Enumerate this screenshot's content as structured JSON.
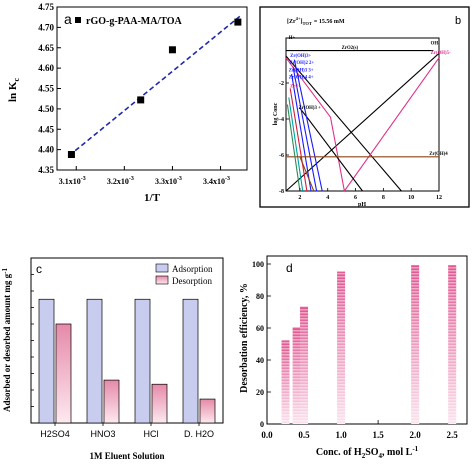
{
  "colors": {
    "axis": "#000000",
    "panelA_fit": "#1f2aa8",
    "adsorption": "#c8cdf0",
    "desorption_bar": "#e58aa8",
    "desorption_grad": "#f7c9d8",
    "efficiency": "#e86a9a"
  },
  "chart_data": [
    {
      "type": "scatter",
      "panel_label": "a",
      "legend": "rGO-g-PAA-MA/TOA",
      "legend_placement": "top-left",
      "xlabel": "1/T",
      "ylabel": "ln K",
      "ylabel_sub": "c",
      "xlim": [
        0.00306,
        0.003455
      ],
      "ylim": [
        4.35,
        4.75
      ],
      "x_ticks": [
        0.0031,
        0.0032,
        0.0033,
        0.0034
      ],
      "x_tick_labels": [
        {
          "base": "3.1x10",
          "exp": "-3"
        },
        {
          "base": "3.2x10",
          "exp": "-3"
        },
        {
          "base": "3.3x10",
          "exp": "-3"
        },
        {
          "base": "3.4x10",
          "exp": "-3"
        }
      ],
      "y_ticks": [
        4.35,
        4.4,
        4.45,
        4.5,
        4.55,
        4.6,
        4.65,
        4.7,
        4.75
      ],
      "y_tick_labels": [
        "4.35",
        "4.40",
        "4.45",
        "4.50",
        "4.55",
        "4.60",
        "4.65",
        "4.70",
        "4.75"
      ],
      "points": [
        {
          "x": 0.00309,
          "y": 4.388
        },
        {
          "x": 0.003234,
          "y": 4.522
        },
        {
          "x": 0.0033,
          "y": 4.645
        },
        {
          "x": 0.003436,
          "y": 4.713
        }
      ],
      "fit_line": {
        "x": [
          0.003085,
          0.00344
        ],
        "y": [
          4.385,
          4.727
        ]
      }
    },
    {
      "type": "line",
      "panel_label": "b",
      "title_text": "[Zr",
      "title_sup": "4+",
      "title_rest": "]",
      "title_sub": "TOT",
      "title_value": "=   15.56 mM",
      "xlabel": "pH",
      "ylabel": "log Conc",
      "xlim": [
        1,
        12
      ],
      "ylim": [
        -8,
        0
      ],
      "x_ticks": [
        2,
        4,
        6,
        8,
        10,
        12
      ],
      "y_ticks": [
        -2,
        -4,
        -6,
        -8
      ],
      "species_labels": [
        {
          "text": "H+",
          "color": "#000000",
          "x": 1.2,
          "y": 0.45
        },
        {
          "text": "Zr(OH)3+",
          "color": "#1a1aff",
          "x": 1.3,
          "y": -0.55
        },
        {
          "text": "Zr(OH)2 2+",
          "color": "#1a1aff",
          "x": 1.25,
          "y": -0.95
        },
        {
          "text": "Zr(OH)3 3+",
          "color": "#1a1aff",
          "x": 1.2,
          "y": -1.35
        },
        {
          "text": "Zr(OH)4 4+",
          "color": "#1a1aff",
          "x": 1.2,
          "y": -1.75
        },
        {
          "text": "Zr4+",
          "color": "#e0308a",
          "x": 1.3,
          "y": -2.25
        },
        {
          "text": "Zr(OH)3 +",
          "color": "#000000",
          "x": 1.9,
          "y": -3.45
        },
        {
          "text": "ZrO2(s)",
          "color": "#000000",
          "x": 5.0,
          "y": -0.1
        },
        {
          "text": "OH-",
          "color": "#000000",
          "x": 11.4,
          "y": 0.15
        },
        {
          "text": "Zr(OH)5-",
          "color": "#e0308a",
          "x": 11.4,
          "y": -0.4
        },
        {
          "text": "Zr(OH)4",
          "color": "#000000",
          "x": 11.3,
          "y": -6.0
        }
      ],
      "series": [
        {
          "color": "#000000",
          "x": [
            1,
            11.6
          ],
          "y": [
            -0.2,
            -0.2
          ]
        },
        {
          "color": "#000000",
          "x": [
            1,
            9.3
          ],
          "y": [
            -0.5,
            -8
          ]
        },
        {
          "color": "#000000",
          "x": [
            1,
            12
          ],
          "y": [
            -8,
            -0.35
          ]
        },
        {
          "color": "#e0308a",
          "x": [
            1,
            4.2,
            5.2,
            12
          ],
          "y": [
            -0.6,
            -3.9,
            -8,
            -0.6
          ]
        },
        {
          "color": "#000000",
          "x": [
            2.0,
            2.6,
            6.5
          ],
          "y": [
            -3.4,
            -4.0,
            -8
          ]
        },
        {
          "color": "#1a1aff",
          "x": [
            1.6,
            3.6
          ],
          "y": [
            -0.7,
            -8
          ]
        },
        {
          "color": "#1a1aff",
          "x": [
            1.5,
            3.2
          ],
          "y": [
            -1.1,
            -8
          ]
        },
        {
          "color": "#1a1aff",
          "x": [
            1.4,
            2.8
          ],
          "y": [
            -1.5,
            -8
          ]
        },
        {
          "color": "#d21f3c",
          "x": [
            1.3,
            2.5
          ],
          "y": [
            -2.3,
            -8
          ]
        },
        {
          "color": "#00a0a0",
          "x": [
            1.2,
            2.2
          ],
          "y": [
            -2.8,
            -8
          ]
        },
        {
          "color": "#8b4513",
          "x": [
            1.0,
            12
          ],
          "y": [
            -6.1,
            -6.1
          ]
        },
        {
          "color": "#8b4513",
          "x": [
            2.0,
            3.0
          ],
          "y": [
            -6.1,
            -8
          ]
        },
        {
          "color": "#2e8b57",
          "x": [
            1.1,
            2.0
          ],
          "y": [
            -3.2,
            -8
          ]
        }
      ]
    },
    {
      "type": "bar",
      "panel_label": "c",
      "xlabel": "1M Eluent Solution",
      "ylabel": "Adsorbed or desorbed amount mg g",
      "ylabel_sup": "-1",
      "categories": [
        "H2SO4",
        "HNO3",
        "HCl",
        "D. H2O"
      ],
      "ylim": [
        0,
        100
      ],
      "y_ticks": [
        0,
        10,
        20,
        30,
        40,
        50,
        60,
        70,
        80,
        90,
        100
      ],
      "legend_placement": "top-right",
      "series": [
        {
          "name": "Adsorption",
          "values": [
            75,
            75,
            75,
            75
          ]
        },
        {
          "name": "Desorption",
          "values": [
            60,
            26,
            23.5,
            14.5
          ]
        }
      ]
    },
    {
      "type": "bar",
      "panel_label": "d",
      "xlabel_text": "Conc. of  H",
      "xlabel_sub": "2",
      "xlabel_rest": "SO",
      "xlabel_sub2": "4",
      "xlabel_unit": ", mol L",
      "xlabel_sup": "-1",
      "ylabel": "Desorbation efficiency, %",
      "xlim": [
        0,
        2.7
      ],
      "ylim": [
        0,
        105
      ],
      "x_ticks": [
        0.0,
        0.5,
        1.0,
        1.5,
        2.0,
        2.5
      ],
      "x_tick_labels": [
        "0.0",
        "0.5",
        "1.0",
        "1.5",
        "2.0",
        "2.5"
      ],
      "y_ticks": [
        0,
        20,
        40,
        60,
        80,
        100
      ],
      "x": [
        0.25,
        0.4,
        0.5,
        1.0,
        2.0,
        2.5
      ],
      "values": [
        52,
        60,
        73,
        95,
        99,
        99
      ]
    }
  ]
}
